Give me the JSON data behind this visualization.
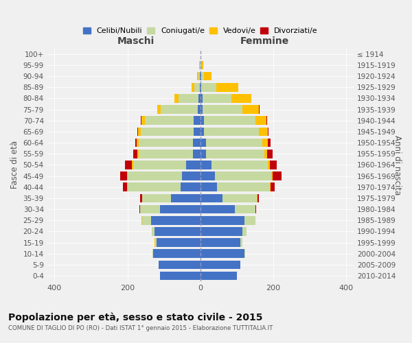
{
  "age_groups": [
    "0-4",
    "5-9",
    "10-14",
    "15-19",
    "20-24",
    "25-29",
    "30-34",
    "35-39",
    "40-44",
    "45-49",
    "50-54",
    "55-59",
    "60-64",
    "65-69",
    "70-74",
    "75-79",
    "80-84",
    "85-89",
    "90-94",
    "95-99",
    "100+"
  ],
  "birth_years": [
    "2010-2014",
    "2005-2009",
    "2000-2004",
    "1995-1999",
    "1990-1994",
    "1985-1989",
    "1980-1984",
    "1975-1979",
    "1970-1974",
    "1965-1969",
    "1960-1964",
    "1955-1959",
    "1950-1954",
    "1945-1949",
    "1940-1944",
    "1935-1939",
    "1930-1934",
    "1925-1929",
    "1920-1924",
    "1915-1919",
    "≤ 1914"
  ],
  "males": {
    "celibe": [
      110,
      115,
      130,
      120,
      125,
      135,
      110,
      80,
      55,
      50,
      40,
      20,
      20,
      18,
      18,
      8,
      5,
      2,
      1,
      0,
      0
    ],
    "coniugato": [
      0,
      0,
      2,
      3,
      8,
      25,
      55,
      80,
      145,
      150,
      145,
      150,
      150,
      145,
      135,
      100,
      55,
      15,
      5,
      2,
      0
    ],
    "vedovo": [
      0,
      0,
      0,
      2,
      0,
      2,
      0,
      0,
      1,
      2,
      2,
      3,
      5,
      8,
      8,
      10,
      12,
      8,
      3,
      1,
      0
    ],
    "divorziato": [
      0,
      0,
      0,
      0,
      0,
      0,
      3,
      5,
      12,
      18,
      20,
      12,
      3,
      2,
      2,
      0,
      0,
      0,
      0,
      0,
      0
    ]
  },
  "females": {
    "nubile": [
      100,
      110,
      120,
      110,
      115,
      120,
      95,
      60,
      45,
      40,
      30,
      15,
      15,
      10,
      10,
      5,
      5,
      3,
      2,
      0,
      0
    ],
    "coniugata": [
      0,
      0,
      3,
      5,
      12,
      30,
      55,
      95,
      145,
      155,
      155,
      160,
      155,
      150,
      140,
      110,
      80,
      40,
      8,
      2,
      0
    ],
    "vedova": [
      0,
      0,
      0,
      0,
      0,
      0,
      0,
      1,
      2,
      3,
      5,
      8,
      15,
      25,
      30,
      45,
      55,
      60,
      20,
      5,
      1
    ],
    "divorziata": [
      0,
      0,
      0,
      0,
      0,
      0,
      2,
      5,
      12,
      25,
      20,
      15,
      8,
      2,
      2,
      2,
      0,
      0,
      0,
      0,
      0
    ]
  },
  "colors": {
    "celibe_nubile": "#4472c4",
    "coniugato_a": "#c5d9a0",
    "vedovo_a": "#ffc000",
    "divorziato_a": "#c0000b"
  },
  "xlim": 420,
  "xticks": [
    -400,
    -200,
    0,
    200,
    400
  ],
  "title": "Popolazione per età, sesso e stato civile - 2015",
  "subtitle": "COMUNE DI TAGLIO DI PO (RO) - Dati ISTAT 1° gennaio 2015 - Elaborazione TUTTITALIA.IT",
  "ylabel": "Fasce di età",
  "ylabel_right": "Anni di nascita",
  "label_maschi": "Maschi",
  "label_femmine": "Femmine",
  "legend_labels": [
    "Celibi/Nubili",
    "Coniugati/e",
    "Vedovi/e",
    "Divorziati/e"
  ],
  "bg_color": "#f0f0f0"
}
